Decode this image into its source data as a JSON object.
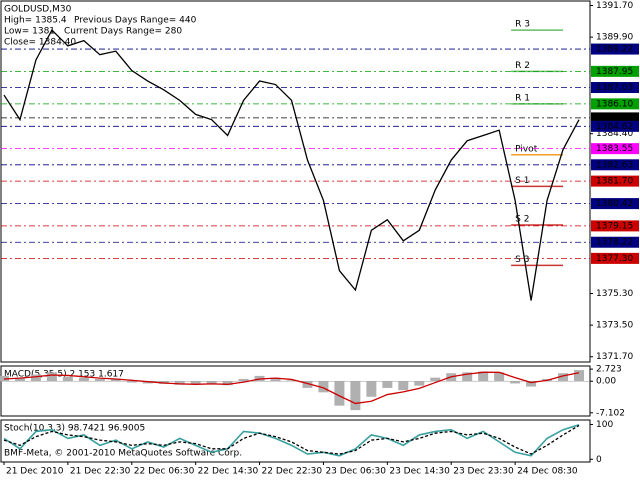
{
  "chart_data": [
    {
      "type": "line",
      "title": "GOLDUSD,M30",
      "annotations": [
        "High= 1385.4",
        "Previous Days Range= 440",
        "Low= 1381",
        "Current Days Range= 280",
        "Close= 1384.40"
      ],
      "x": [
        0,
        4,
        8,
        12,
        16,
        20,
        24,
        28,
        32,
        36,
        40,
        44,
        48,
        52,
        56,
        60,
        64,
        68,
        72,
        76,
        80,
        84,
        88,
        92,
        96,
        100,
        104,
        108,
        112,
        116,
        120,
        124,
        128,
        132,
        136,
        140,
        144
      ],
      "values": [
        1386.6,
        1385.2,
        1388.6,
        1390.3,
        1389.4,
        1389.7,
        1388.9,
        1389.1,
        1388.0,
        1387.4,
        1386.9,
        1386.3,
        1385.5,
        1385.2,
        1384.3,
        1386.3,
        1387.4,
        1387.2,
        1386.3,
        1382.9,
        1380.6,
        1376.6,
        1375.5,
        1378.9,
        1379.5,
        1378.3,
        1378.9,
        1381.2,
        1382.9,
        1384.0,
        1384.3,
        1384.6,
        1380.6,
        1374.9,
        1380.6,
        1383.5,
        1385.2
      ],
      "color": "#000000",
      "xlim": [
        -0.75,
        146.75
      ],
      "xticks": [
        {
          "value": 0,
          "label": "21 Dec 2010"
        },
        {
          "value": 16,
          "label": "21 Dec 22:30"
        },
        {
          "value": 32,
          "label": "22 Dec 06:30"
        },
        {
          "value": 48,
          "label": "22 Dec 14:30"
        },
        {
          "value": 64,
          "label": "22 Dec 22:30"
        },
        {
          "value": 80,
          "label": "23 Dec 06:30"
        },
        {
          "value": 96,
          "label": "23 Dec 14:30"
        },
        {
          "value": 112,
          "label": "23 Dec 23:30"
        },
        {
          "value": 128,
          "label": "24 Dec 08:30"
        }
      ],
      "ylim": [
        1371.4,
        1391.9
      ],
      "yticks": [
        {
          "value": 1391.7,
          "label": "1391.70"
        },
        {
          "value": 1389.9,
          "label": "1389.90"
        },
        {
          "value": 1384.4,
          "label": "1384.40"
        },
        {
          "value": 1375.3,
          "label": "1375.30"
        },
        {
          "value": 1373.5,
          "label": "1373.50"
        },
        {
          "value": 1371.7,
          "label": "1371.70"
        }
      ],
      "levels": [
        {
          "label": "R 3",
          "value": 1390.3,
          "color": "#66bb66"
        },
        {
          "label": "R 2",
          "value": 1387.95,
          "color": "#66bb66"
        },
        {
          "label": "R 1",
          "value": 1386.1,
          "color": "#66bb66"
        },
        {
          "label": "Pivot",
          "value": 1383.2,
          "color": "#f0a020"
        },
        {
          "label": "S 1",
          "value": 1381.4,
          "color": "#cc3333"
        },
        {
          "label": "S 2",
          "value": 1379.2,
          "color": "#cc3333"
        },
        {
          "label": "S 3",
          "value": 1376.9,
          "color": "#cc3333"
        }
      ],
      "price_tags": [
        {
          "value": 1389.22,
          "color": "#000080"
        },
        {
          "value": 1387.95,
          "color": "#00a000"
        },
        {
          "value": 1387.03,
          "color": "#000080"
        },
        {
          "value": 1386.1,
          "label": "1386.10",
          "color": "#00a000"
        },
        {
          "value": 1385.3,
          "label": "1385.30",
          "color": "#000000"
        },
        {
          "value": 1384.82,
          "color": "#000080"
        },
        {
          "value": 1383.55,
          "color": "#ff00ff"
        },
        {
          "value": 1382.63,
          "color": "#000080"
        },
        {
          "value": 1381.7,
          "label": "1381.70",
          "color": "#cc0000"
        },
        {
          "value": 1380.42,
          "color": "#000080"
        },
        {
          "value": 1379.15,
          "color": "#cc0000"
        },
        {
          "value": 1378.22,
          "color": "#000080"
        },
        {
          "value": 1377.3,
          "label": "1377.30",
          "color": "#cc0000"
        }
      ]
    },
    {
      "type": "bar",
      "title": "MACD(5,35,5) 2.153 1.617",
      "x": [
        0,
        4,
        8,
        12,
        16,
        20,
        24,
        28,
        32,
        36,
        40,
        44,
        48,
        52,
        56,
        60,
        64,
        68,
        72,
        76,
        80,
        84,
        88,
        92,
        96,
        100,
        104,
        108,
        112,
        116,
        120,
        124,
        128,
        132,
        136,
        140,
        144
      ],
      "values": [
        1.2,
        0.8,
        1.5,
        2.0,
        1.0,
        0.8,
        0.5,
        0.6,
        -0.3,
        -0.5,
        -0.6,
        -0.8,
        -0.7,
        -0.6,
        -0.9,
        0.5,
        1.2,
        0.8,
        0.2,
        -1.5,
        -2.5,
        -5.5,
        -6.5,
        -3.5,
        -1.5,
        -2.0,
        -1.0,
        0.8,
        1.8,
        2.0,
        2.2,
        2.0,
        -0.5,
        -1.2,
        0.5,
        1.8,
        2.5
      ],
      "line_values": [
        0.5,
        0.7,
        1.0,
        1.4,
        1.3,
        1.0,
        0.7,
        0.5,
        0.2,
        -0.1,
        -0.4,
        -0.6,
        -0.7,
        -0.6,
        -0.7,
        -0.2,
        0.5,
        0.7,
        0.4,
        -0.5,
        -1.5,
        -3.3,
        -5.0,
        -4.5,
        -3.0,
        -2.4,
        -1.6,
        -0.3,
        1.0,
        1.6,
        2.0,
        2.0,
        0.8,
        -0.3,
        0.2,
        1.2,
        1.9
      ],
      "color": "#b0b0b0",
      "line_color": "#cc0000",
      "xlim": [
        -0.75,
        146.75
      ],
      "ylim": [
        -7.6,
        3.2
      ],
      "yticks": [
        {
          "value": 2.723,
          "label": "2.723"
        },
        {
          "value": 0,
          "label": "0.00"
        },
        {
          "value": -7.102,
          "label": "-7.102"
        }
      ]
    },
    {
      "type": "line",
      "title": "Stoch(10,3,3) 98.7421 96.9005",
      "x": [
        0,
        4,
        8,
        12,
        16,
        20,
        24,
        28,
        32,
        36,
        40,
        44,
        48,
        52,
        56,
        60,
        64,
        68,
        72,
        76,
        80,
        84,
        88,
        92,
        96,
        100,
        104,
        108,
        112,
        116,
        120,
        124,
        128,
        132,
        136,
        140,
        144
      ],
      "values": [
        60,
        30,
        80,
        85,
        60,
        70,
        40,
        55,
        30,
        50,
        35,
        60,
        40,
        20,
        30,
        80,
        75,
        60,
        40,
        15,
        20,
        10,
        30,
        70,
        60,
        40,
        70,
        80,
        85,
        60,
        80,
        50,
        20,
        10,
        60,
        85,
        99
      ],
      "line_values": [
        55,
        40,
        65,
        80,
        70,
        65,
        55,
        50,
        40,
        45,
        40,
        50,
        45,
        30,
        30,
        60,
        75,
        65,
        50,
        25,
        20,
        15,
        25,
        55,
        60,
        50,
        60,
        75,
        80,
        70,
        75,
        60,
        35,
        15,
        40,
        70,
        97
      ],
      "color": "#3aa0a0",
      "line_color": "#000000",
      "xlim": [
        -0.75,
        146.75
      ],
      "ylim": [
        -5,
        110
      ],
      "yticks": [
        100,
        0
      ],
      "footer": "BMF-Meta, © 2001-2010 MetaQuotes Software Corp."
    }
  ]
}
